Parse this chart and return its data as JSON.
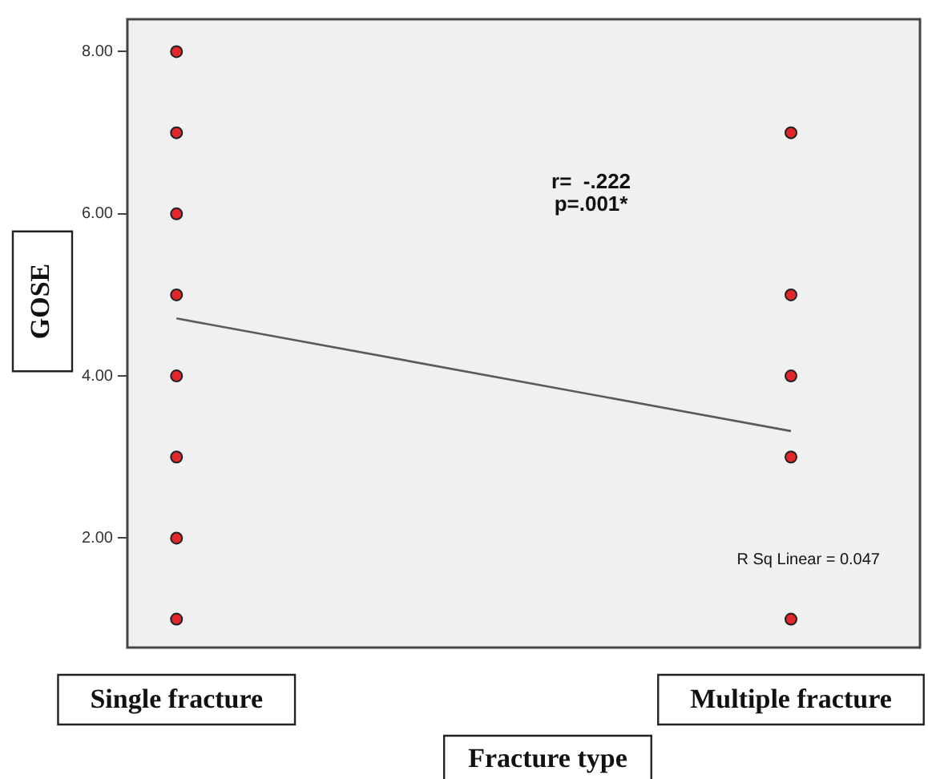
{
  "chart_data": {
    "type": "scatter",
    "xlabel": "Fracture type",
    "ylabel": "GOSE",
    "categories": [
      "Single fracture",
      "Multiple fracture"
    ],
    "ylim": [
      0.65,
      8.4
    ],
    "yticks": [
      {
        "value": 2,
        "label": "2.00"
      },
      {
        "value": 4,
        "label": "4.00"
      },
      {
        "value": 6,
        "label": "6.00"
      },
      {
        "value": 8,
        "label": "8.00"
      }
    ],
    "grid": false,
    "legend": false,
    "marker": "circle",
    "series": [
      {
        "color": "#e3262a",
        "x": [
          "Single fracture",
          "Single fracture",
          "Single fracture",
          "Single fracture",
          "Single fracture",
          "Single fracture",
          "Single fracture",
          "Single fracture"
        ],
        "values": [
          1,
          2,
          3,
          4,
          5,
          6,
          7,
          8
        ]
      },
      {
        "color": "#e3262a",
        "x": [
          "Multiple fracture",
          "Multiple fracture",
          "Multiple fracture",
          "Multiple fracture",
          "Multiple fracture"
        ],
        "values": [
          1,
          3,
          4,
          5,
          7
        ]
      },
      {
        "type": "line",
        "color": "#5a5a5a",
        "line_style": "solid",
        "marker": "none",
        "x": [
          "Single fracture",
          "Multiple fracture"
        ],
        "values": [
          4.71,
          3.32
        ]
      }
    ],
    "annotations": [
      "r=  -.222\np=.001*",
      "R Sq Linear = 0.047"
    ]
  }
}
